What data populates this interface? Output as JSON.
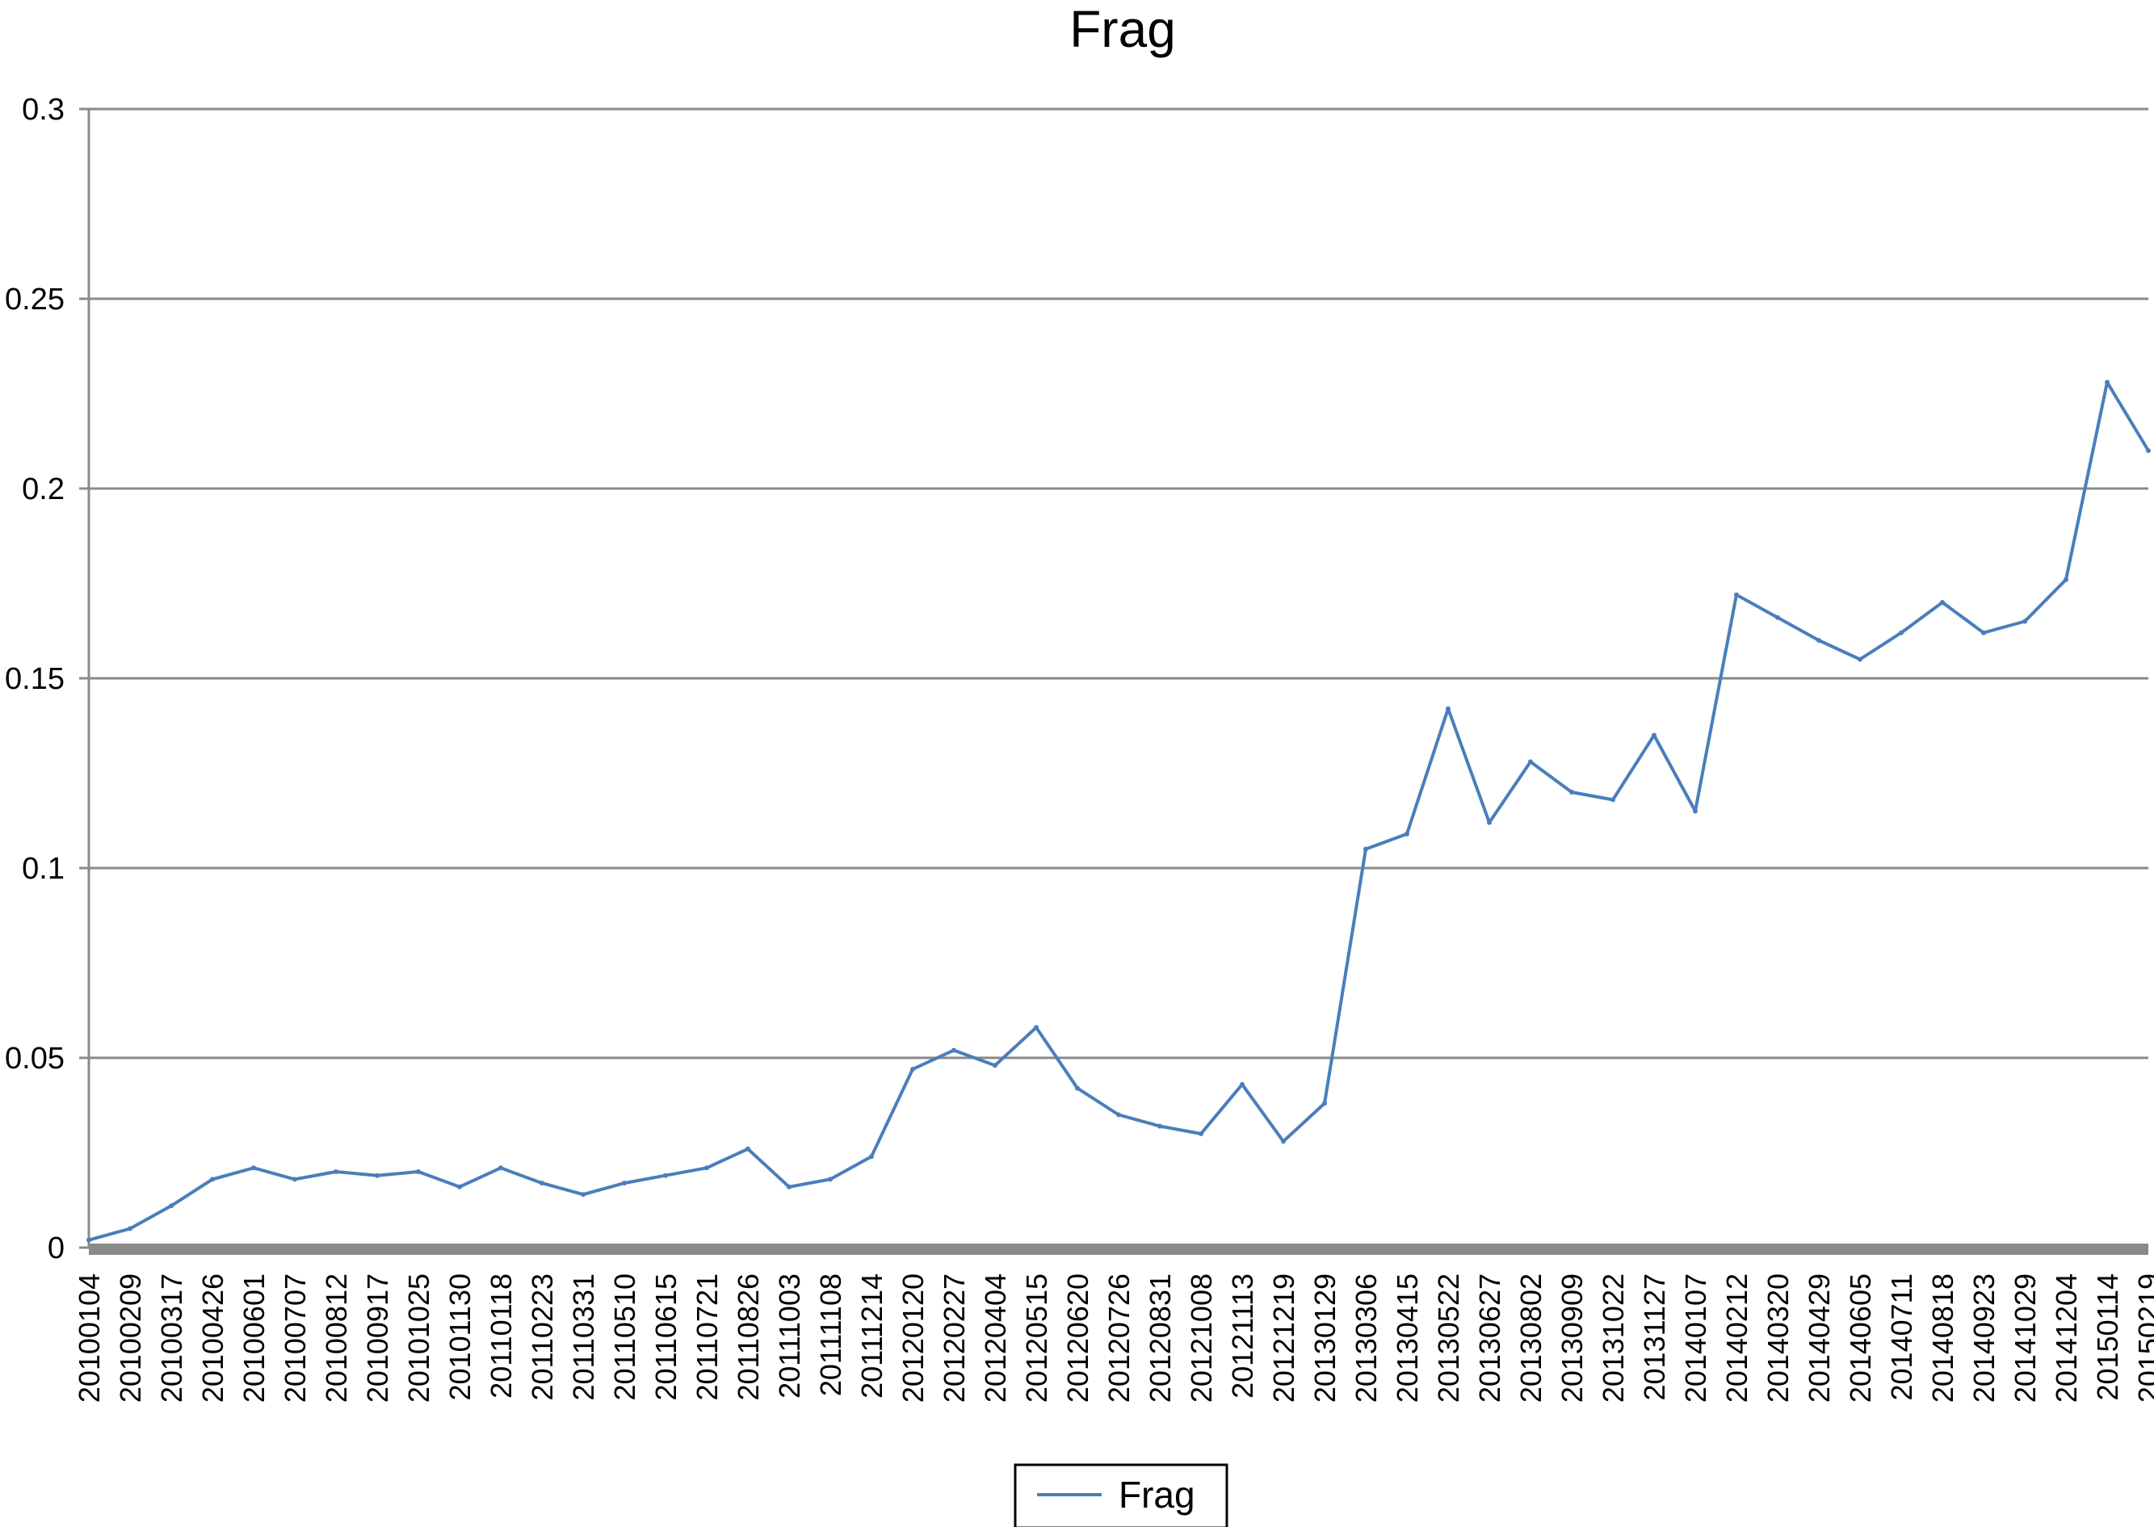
{
  "chart_data": {
    "type": "line",
    "title": "Frag",
    "xlabel": "",
    "ylabel": "",
    "ylim": [
      0,
      0.3
    ],
    "yticks": [
      0,
      0.05,
      0.1,
      0.15,
      0.2,
      0.25,
      0.3
    ],
    "ytick_labels": [
      "0",
      "0.05",
      "0.1",
      "0.15",
      "0.2",
      "0.25",
      "0.3"
    ],
    "categories": [
      "20100104",
      "20100209",
      "20100317",
      "20100426",
      "20100601",
      "20100707",
      "20100812",
      "20100917",
      "20101025",
      "20101130",
      "20110118",
      "20110223",
      "20110331",
      "20110510",
      "20110615",
      "20110721",
      "20110826",
      "20111003",
      "20111108",
      "20111214",
      "20120120",
      "20120227",
      "20120404",
      "20120515",
      "20120620",
      "20120726",
      "20120831",
      "20121008",
      "20121113",
      "20121219",
      "20130129",
      "20130306",
      "20130415",
      "20130522",
      "20130627",
      "20130802",
      "20130909",
      "20131022",
      "20131127",
      "20140107",
      "20140212",
      "20140320",
      "20140429",
      "20140605",
      "20140711",
      "20140818",
      "20140923",
      "20141029",
      "20141204",
      "20150114",
      "20150219"
    ],
    "grid": true,
    "legend": "bottom",
    "line_color": "#4a7ebb",
    "series": [
      {
        "name": "Frag",
        "x": [
          "20100104",
          "20100209",
          "20100317",
          "20100426",
          "20100601",
          "20100707",
          "20100812",
          "20100917",
          "20101025",
          "20101130",
          "20110118",
          "20110223",
          "20110331",
          "20110510",
          "20110615",
          "20110721",
          "20110826",
          "20111003",
          "20111108",
          "20111214",
          "20120120",
          "20120227",
          "20120404",
          "20120515",
          "20120620",
          "20120726",
          "20120831",
          "20121008",
          "20121113",
          "20121219",
          "20130129",
          "20130306",
          "20130415",
          "20130522",
          "20130627",
          "20130802",
          "20130909",
          "20131022",
          "20131127",
          "20140107",
          "20140212",
          "20140320",
          "20140429",
          "20140605",
          "20140711",
          "20140818",
          "20140923",
          "20141029",
          "20141204",
          "20150114",
          "20150219"
        ],
        "values": [
          0.002,
          0.005,
          0.011,
          0.018,
          0.021,
          0.018,
          0.02,
          0.019,
          0.02,
          0.016,
          0.021,
          0.017,
          0.014,
          0.017,
          0.019,
          0.021,
          0.026,
          0.016,
          0.018,
          0.024,
          0.047,
          0.052,
          0.048,
          0.058,
          0.042,
          0.035,
          0.032,
          0.03,
          0.043,
          0.028,
          0.038,
          0.105,
          0.109,
          0.142,
          0.112,
          0.128,
          0.12,
          0.118,
          0.135,
          0.115,
          0.172,
          0.166,
          0.16,
          0.155,
          0.162,
          0.17,
          0.162,
          0.165,
          0.176,
          0.228,
          0.21
        ]
      }
    ]
  }
}
